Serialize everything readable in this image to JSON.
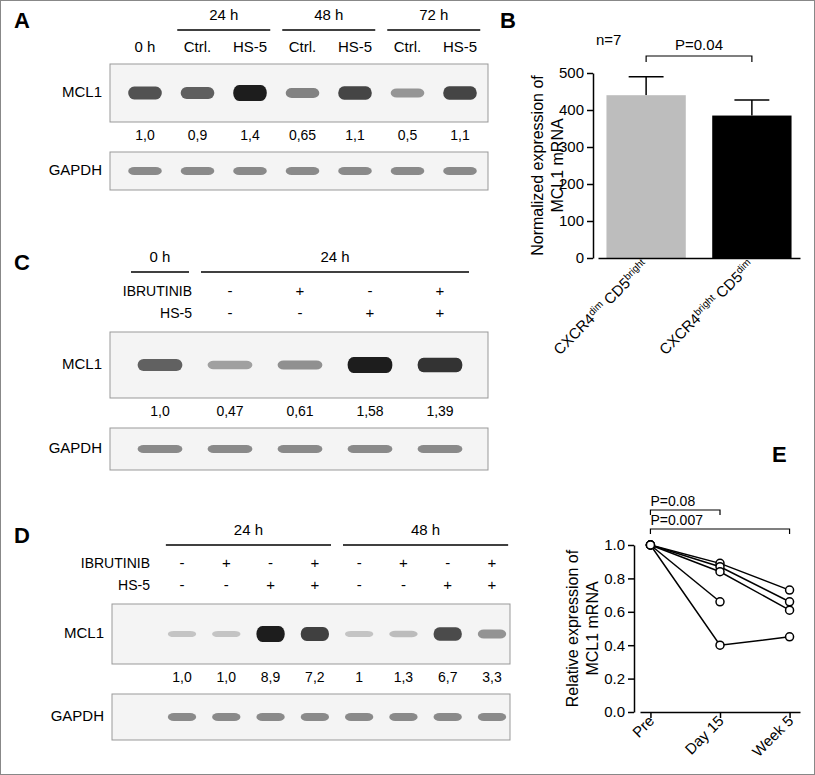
{
  "chart_data": [
    {
      "type": "blot",
      "title": "A",
      "categories": [
        "0 h",
        "Ctrl.",
        "HS-5",
        "Ctrl.",
        "HS-5",
        "Ctrl.",
        "HS-5"
      ],
      "groups": [
        {
          "label": "24 h",
          "lanes": [
            1,
            2
          ]
        },
        {
          "label": "48 h",
          "lanes": [
            3,
            4
          ]
        },
        {
          "label": "72 h",
          "lanes": [
            5,
            6
          ]
        }
      ],
      "series": [
        {
          "name": "MCL1",
          "values": [
            1.0,
            0.9,
            1.4,
            0.65,
            1.1,
            0.5,
            1.1
          ],
          "value_labels": [
            "1,0",
            "0,9",
            "1,4",
            "0,65",
            "1,1",
            "0,5",
            "1,1"
          ]
        },
        {
          "name": "GAPDH"
        }
      ]
    },
    {
      "type": "bar",
      "title": "B",
      "subtitle": "n=7",
      "categories": [
        "CXCR4dim CD5bright",
        "CXCR4bright CD5dim"
      ],
      "values": [
        440,
        385
      ],
      "errors": [
        50,
        42
      ],
      "colors": [
        "#bdbdbd",
        "#000000"
      ],
      "ylabel": [
        "Normalized expression of",
        "MCL1 mRNA"
      ],
      "ylim": [
        0,
        500
      ],
      "yticks": [
        0,
        100,
        200,
        300,
        400,
        500
      ],
      "annotations": [
        {
          "text": "P=0.04",
          "between": [
            0,
            1
          ]
        }
      ]
    },
    {
      "type": "blot",
      "title": "C",
      "groups": [
        {
          "label": "0 h",
          "lanes": [
            0,
            0
          ]
        },
        {
          "label": "24 h",
          "lanes": [
            1,
            4
          ]
        }
      ],
      "conditions": [
        {
          "name": "IBRUTINIB",
          "labels": [
            null,
            "-",
            "+",
            "-",
            "+"
          ]
        },
        {
          "name": "HS-5",
          "labels": [
            null,
            "-",
            "-",
            "+",
            "+"
          ]
        }
      ],
      "series": [
        {
          "name": "MCL1",
          "values": [
            1.0,
            0.47,
            0.61,
            1.58,
            1.39
          ],
          "value_labels": [
            "1,0",
            "0,47",
            "0,61",
            "1,58",
            "1,39"
          ]
        },
        {
          "name": "GAPDH"
        }
      ]
    },
    {
      "type": "blot",
      "title": "D",
      "groups": [
        {
          "label": "24 h",
          "lanes": [
            0,
            3
          ]
        },
        {
          "label": "48 h",
          "lanes": [
            4,
            7
          ]
        }
      ],
      "conditions": [
        {
          "name": "IBRUTINIB",
          "labels": [
            "-",
            "+",
            "-",
            "+",
            "-",
            "+",
            "-",
            "+"
          ]
        },
        {
          "name": "HS-5",
          "labels": [
            "-",
            "-",
            "+",
            "+",
            "-",
            "-",
            "+",
            "+"
          ]
        }
      ],
      "series": [
        {
          "name": "MCL1",
          "values": [
            1.0,
            1.0,
            8.9,
            7.2,
            1,
            1.3,
            6.7,
            3.3
          ],
          "value_labels": [
            "1,0",
            "1,0",
            "8,9",
            "7,2",
            "1",
            "1,3",
            "6,7",
            "3,3"
          ]
        },
        {
          "name": "GAPDH"
        }
      ]
    },
    {
      "type": "line",
      "title": "E",
      "categories": [
        "Pre",
        "Day 15",
        "Week 5"
      ],
      "ylabel": [
        "Relative expression of",
        "MCL1 mRNA"
      ],
      "ylim": [
        0,
        1.0
      ],
      "yticks": [
        {
          "value": 0,
          "label": "0.0"
        },
        {
          "value": 0.2,
          "label": "0.2"
        },
        {
          "value": 0.4,
          "label": "0.4"
        },
        {
          "value": 0.6,
          "label": "0.6"
        },
        {
          "value": 0.8,
          "label": "0.8"
        },
        {
          "value": 1.0,
          "label": "1.0"
        }
      ],
      "color": "#000000",
      "marker": "circle",
      "series": [
        {
          "values": [
            1.0,
            0.89,
            0.73
          ]
        },
        {
          "values": [
            1.0,
            0.87,
            0.66
          ]
        },
        {
          "values": [
            1.0,
            0.84,
            0.61
          ]
        },
        {
          "values": [
            1.0,
            0.66,
            null
          ]
        },
        {
          "values": [
            1.0,
            0.4,
            0.45
          ]
        }
      ],
      "annotations": [
        {
          "text": "P=0.08",
          "between": [
            0,
            1
          ]
        },
        {
          "text": "P=0.007",
          "between": [
            0,
            2
          ]
        }
      ]
    }
  ]
}
